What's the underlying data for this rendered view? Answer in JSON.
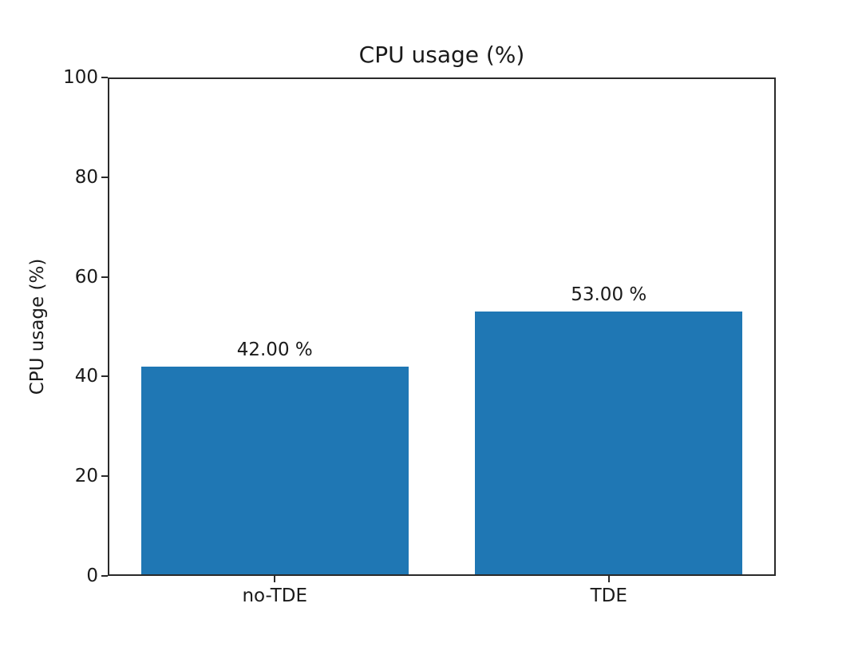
{
  "chart_data": {
    "type": "bar",
    "title": "CPU usage (%)",
    "ylabel": "CPU usage (%)",
    "xlabel": "",
    "categories": [
      "no-TDE",
      "TDE"
    ],
    "values": [
      42,
      53
    ],
    "bar_labels": [
      "42.00 %",
      "53.00 %"
    ],
    "ylim": [
      0,
      100
    ],
    "yticks": [
      0,
      20,
      40,
      60,
      80,
      100
    ],
    "bar_color": "#1f77b4",
    "axis_color": "#2a2a2a",
    "text_color": "#1a1a1a",
    "background_color": "#ffffff",
    "grid": false,
    "legend": null
  }
}
